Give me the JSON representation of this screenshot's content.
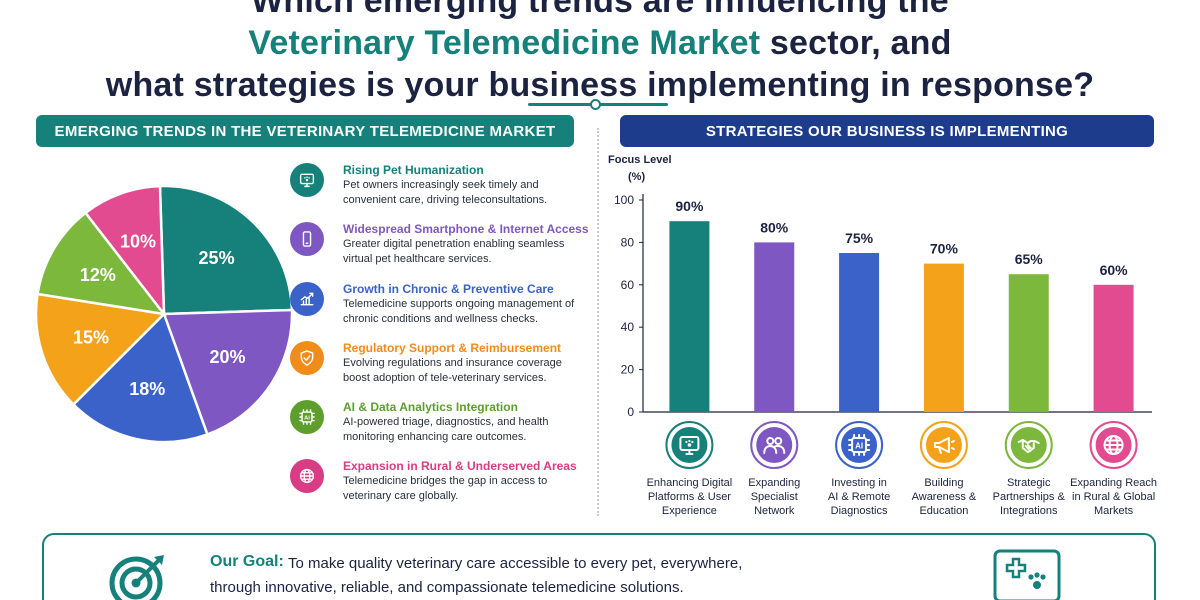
{
  "headline": {
    "line1": "Which emerging trends are influencing the",
    "line2_highlight": "Veterinary Telemedicine Market",
    "line2_rest": " sector, and",
    "line3": "what strategies is your business implementing in response?"
  },
  "left_banner": "EMERGING TRENDS IN THE VETERINARY TELEMEDICINE MARKET",
  "right_banner": "STRATEGIES OUR BUSINESS IS IMPLEMENTING",
  "colors": {
    "teal": "#16807a",
    "purple": "#7e57c2",
    "blue": "#3a62c9",
    "orange": "#f5a21b",
    "green": "#7cb83c",
    "pink": "#e24b8f",
    "navy": "#1d3c8c"
  },
  "trends": [
    {
      "title": "Rising Pet Humanization",
      "desc": "Pet owners increasingly seek timely and convenient care, driving teleconsultations.",
      "color": "#16807a",
      "icon": "monitor-pet-icon"
    },
    {
      "title": "Widespread Smartphone & Internet Access",
      "desc": "Greater digital penetration enabling seamless virtual pet healthcare services.",
      "color": "#7e57c2",
      "icon": "smartphone-icon"
    },
    {
      "title": "Growth in Chronic & Preventive Care",
      "desc": "Telemedicine supports ongoing management of chronic conditions and wellness checks.",
      "color": "#3a62c9",
      "icon": "growth-chart-icon"
    },
    {
      "title": "Regulatory Support & Reimbursement",
      "desc": "Evolving regulations and insurance coverage boost adoption of tele-veterinary services.",
      "color": "#f08c1a",
      "icon": "shield-check-icon"
    },
    {
      "title": "AI & Data Analytics Integration",
      "desc": "AI-powered triage, diagnostics, and health monitoring enhancing care outcomes.",
      "color": "#5d9e2c",
      "icon": "ai-chip-icon"
    },
    {
      "title": "Expansion in Rural & Underserved Areas",
      "desc": "Telemedicine bridges the gap in access to veterinary care globally.",
      "color": "#d63d84",
      "icon": "globe-icon"
    }
  ],
  "chart_data": [
    {
      "type": "pie",
      "categories": [
        "Rising Pet Humanization",
        "Widespread Smartphone & Internet Access",
        "Growth in Chronic & Preventive Care",
        "Regulatory Support & Reimbursement",
        "AI & Data Analytics Integration",
        "Expansion in Rural & Underserved Areas"
      ],
      "values": [
        25,
        20,
        18,
        15,
        12,
        10
      ],
      "labels": [
        "25%",
        "20%",
        "18%",
        "15%",
        "12%",
        "10%"
      ],
      "colors": [
        "#16807a",
        "#7e57c2",
        "#3a62c9",
        "#f5a21b",
        "#7cb83c",
        "#e24b8f"
      ]
    },
    {
      "type": "bar",
      "categories": [
        "Enhancing Digital Platforms & User Experience",
        "Expanding Specialist Network",
        "Investing in AI & Remote Diagnostics",
        "Building Awareness & Education",
        "Strategic Partnerships & Integrations",
        "Expanding Reach in Rural & Global Markets"
      ],
      "category_lines": [
        [
          "Enhancing Digital",
          "Platforms & User",
          "Experience"
        ],
        [
          "Expanding",
          "Specialist",
          "Network"
        ],
        [
          "Investing in",
          "AI & Remote",
          "Diagnostics"
        ],
        [
          "Building",
          "Awareness &",
          "Education"
        ],
        [
          "Strategic",
          "Partnerships &",
          "Integrations"
        ],
        [
          "Expanding Reach",
          "in Rural & Global",
          "Markets"
        ]
      ],
      "values": [
        90,
        80,
        75,
        70,
        65,
        60
      ],
      "value_labels": [
        "90%",
        "80%",
        "75%",
        "70%",
        "65%",
        "60%"
      ],
      "colors": [
        "#16807a",
        "#7e57c2",
        "#3a62c9",
        "#f5a21b",
        "#7cb83c",
        "#e24b8f"
      ],
      "icons": [
        "monitor-pet-icon",
        "people-icon",
        "ai-chip-icon",
        "megaphone-icon",
        "handshake-icon",
        "globe-icon"
      ],
      "ylabel_line1": "Focus Level",
      "ylabel_line2": "(%)",
      "ylim": [
        0,
        100
      ],
      "yticks": [
        0,
        20,
        40,
        60,
        80,
        100
      ],
      "grid": false
    }
  ],
  "goal": {
    "title": "Our Goal:",
    "text_line1": "To make quality veterinary care accessible to every pet, everywhere,",
    "text_line2": "through innovative, reliable, and compassionate telemedicine solutions."
  }
}
